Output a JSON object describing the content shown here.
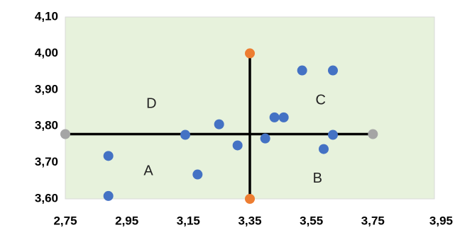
{
  "chart_data": {
    "type": "scatter",
    "title": "",
    "xlabel": "",
    "ylabel": "",
    "xlim": [
      2.75,
      3.95
    ],
    "ylim": [
      3.6,
      4.1
    ],
    "x_ticks": [
      "2,75",
      "2,95",
      "3,15",
      "3,35",
      "3,55",
      "3,75",
      "3,95"
    ],
    "y_ticks": [
      "3,60",
      "3,70",
      "3,80",
      "3,90",
      "4,00",
      "4,10"
    ],
    "grid": false,
    "legend": "none",
    "colors": {
      "plot_area": "#e7f2dc",
      "points": "#4472c4",
      "vertical_endpoints": "#ed7d31",
      "horizontal_endpoints": "#a5a5a5",
      "cross_lines": "#000000"
    },
    "series": [
      {
        "values": [
          {
            "x": 2.89,
            "y": 3.718
          },
          {
            "x": 2.89,
            "y": 3.608
          },
          {
            "x": 3.14,
            "y": 3.776
          },
          {
            "x": 3.18,
            "y": 3.667
          },
          {
            "x": 3.25,
            "y": 3.805
          },
          {
            "x": 3.31,
            "y": 3.747
          },
          {
            "x": 3.4,
            "y": 3.766
          },
          {
            "x": 3.43,
            "y": 3.824
          },
          {
            "x": 3.46,
            "y": 3.824
          },
          {
            "x": 3.52,
            "y": 3.953
          },
          {
            "x": 3.59,
            "y": 3.737
          },
          {
            "x": 3.62,
            "y": 3.953
          },
          {
            "x": 3.62,
            "y": 3.776
          }
        ]
      },
      {
        "type": "line",
        "values": [
          {
            "x": 3.35,
            "y": 4.0
          },
          {
            "x": 3.35,
            "y": 3.6
          }
        ]
      },
      {
        "type": "line",
        "values": [
          {
            "x": 2.75,
            "y": 3.778
          },
          {
            "x": 3.75,
            "y": 3.778
          }
        ]
      }
    ],
    "annotations": [
      {
        "text": "A",
        "x": 3.02,
        "y": 3.675
      },
      {
        "text": "B",
        "x": 3.57,
        "y": 3.655
      },
      {
        "text": "C",
        "x": 3.58,
        "y": 3.87
      },
      {
        "text": "D",
        "x": 3.03,
        "y": 3.86
      }
    ]
  }
}
